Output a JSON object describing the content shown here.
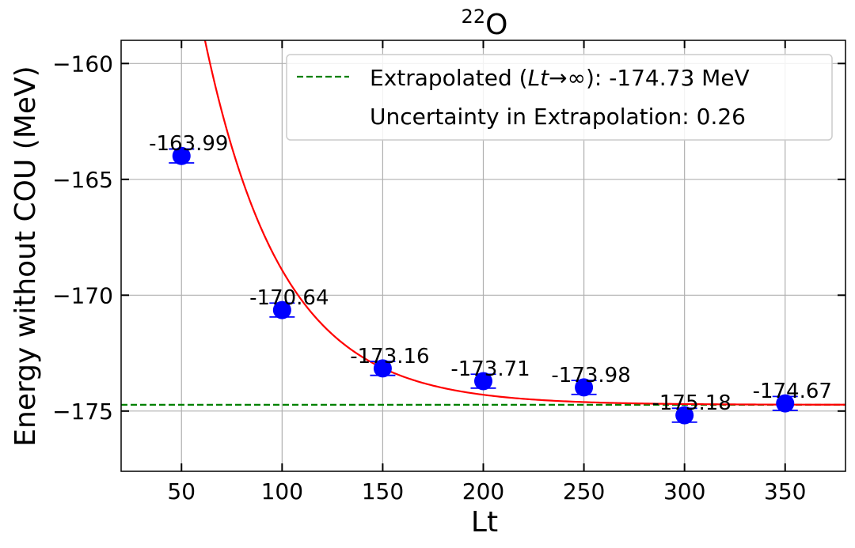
{
  "chart_data": {
    "type": "scatter",
    "title_base": "O",
    "title_sup": "22",
    "xlabel": "Lt",
    "ylabel": "Energy without COU (MeV)",
    "xlim": [
      20,
      380
    ],
    "ylim": [
      -177.6,
      -159.0
    ],
    "xticks": [
      50,
      100,
      150,
      200,
      250,
      300,
      350
    ],
    "yticks": [
      -160,
      -165,
      -170,
      -175
    ],
    "ytick_labels": [
      "−160",
      "−165",
      "−170",
      "−175"
    ],
    "grid": true,
    "points": [
      {
        "x": 50,
        "y": -163.99,
        "err": 0.3,
        "label": "-163.99"
      },
      {
        "x": 100,
        "y": -170.64,
        "err": 0.3,
        "label": "-170.64"
      },
      {
        "x": 150,
        "y": -173.16,
        "err": 0.3,
        "label": "-173.16"
      },
      {
        "x": 200,
        "y": -173.71,
        "err": 0.3,
        "label": "-173.71"
      },
      {
        "x": 250,
        "y": -173.98,
        "err": 0.3,
        "label": "-173.98"
      },
      {
        "x": 300,
        "y": -175.18,
        "err": 0.3,
        "label": "-175.18"
      },
      {
        "x": 350,
        "y": -174.67,
        "err": 0.3,
        "label": "-174.67"
      }
    ],
    "fit": {
      "type": "exponential",
      "asymptote": -174.73,
      "amplitude": 21.3,
      "decay_length": 38.5
    },
    "extrapolated_value": -174.73,
    "legend": {
      "placement": "top-right",
      "line1_prefix": "Extrapolated (",
      "line1_math": "Lt",
      "line1_arrow": "→",
      "line1_inf": "∞",
      "line1_suffix": "): -174.73 MeV",
      "line2": "Uncertainty in Extrapolation: 0.26"
    },
    "colors": {
      "points": "#0000ff",
      "fit": "#ff0000",
      "extrapolation": "#008000",
      "grid": "#b0b0b0"
    }
  }
}
